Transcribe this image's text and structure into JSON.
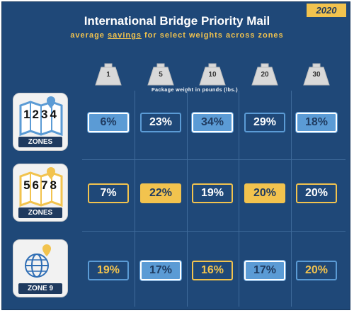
{
  "year": "2020",
  "title": "International Bridge Priority Mail",
  "subtitle_before": "average ",
  "subtitle_underlined": "savings",
  "subtitle_after": " for select weights across zones",
  "axis_label": "Package weight in pounds (lbs.)",
  "colors": {
    "background": "#1f4878",
    "blue": "#5b9bd5",
    "gold": "#f2c34e",
    "navy": "#1f3a5f"
  },
  "chart_data": {
    "type": "table",
    "title": "International Bridge Priority Mail",
    "subtitle": "average savings for select weights across zones",
    "xlabel": "Package weight in pounds (lbs.)",
    "categories": [
      "1",
      "5",
      "10",
      "20",
      "30"
    ],
    "series": [
      {
        "name": "1 2 3 4 ZONES",
        "values": [
          6,
          23,
          34,
          29,
          18
        ],
        "labels": [
          "6%",
          "23%",
          "34%",
          "29%",
          "18%"
        ],
        "color": "#5b9bd5",
        "filled": [
          true,
          false,
          true,
          false,
          true
        ]
      },
      {
        "name": "5 6 7 8 ZONES",
        "values": [
          7,
          22,
          19,
          20,
          20
        ],
        "labels": [
          "7%",
          "22%",
          "19%",
          "20%",
          "20%"
        ],
        "color": "#f2c34e",
        "filled": [
          false,
          true,
          false,
          true,
          false
        ]
      },
      {
        "name": "ZONE 9",
        "values": [
          19,
          17,
          16,
          17,
          20
        ],
        "labels": [
          "19%",
          "17%",
          "16%",
          "17%",
          "20%"
        ],
        "color": "mixed",
        "filled": [
          false,
          true,
          false,
          true,
          false
        ]
      }
    ]
  },
  "zones": [
    {
      "numbers": "1234",
      "tag": "ZONES",
      "map_color": "#5b9bd5"
    },
    {
      "numbers": "5678",
      "tag": "ZONES",
      "map_color": "#f2c34e"
    },
    {
      "numbers": "",
      "tag": "ZONE 9",
      "map_color": "#2e6db4"
    }
  ]
}
